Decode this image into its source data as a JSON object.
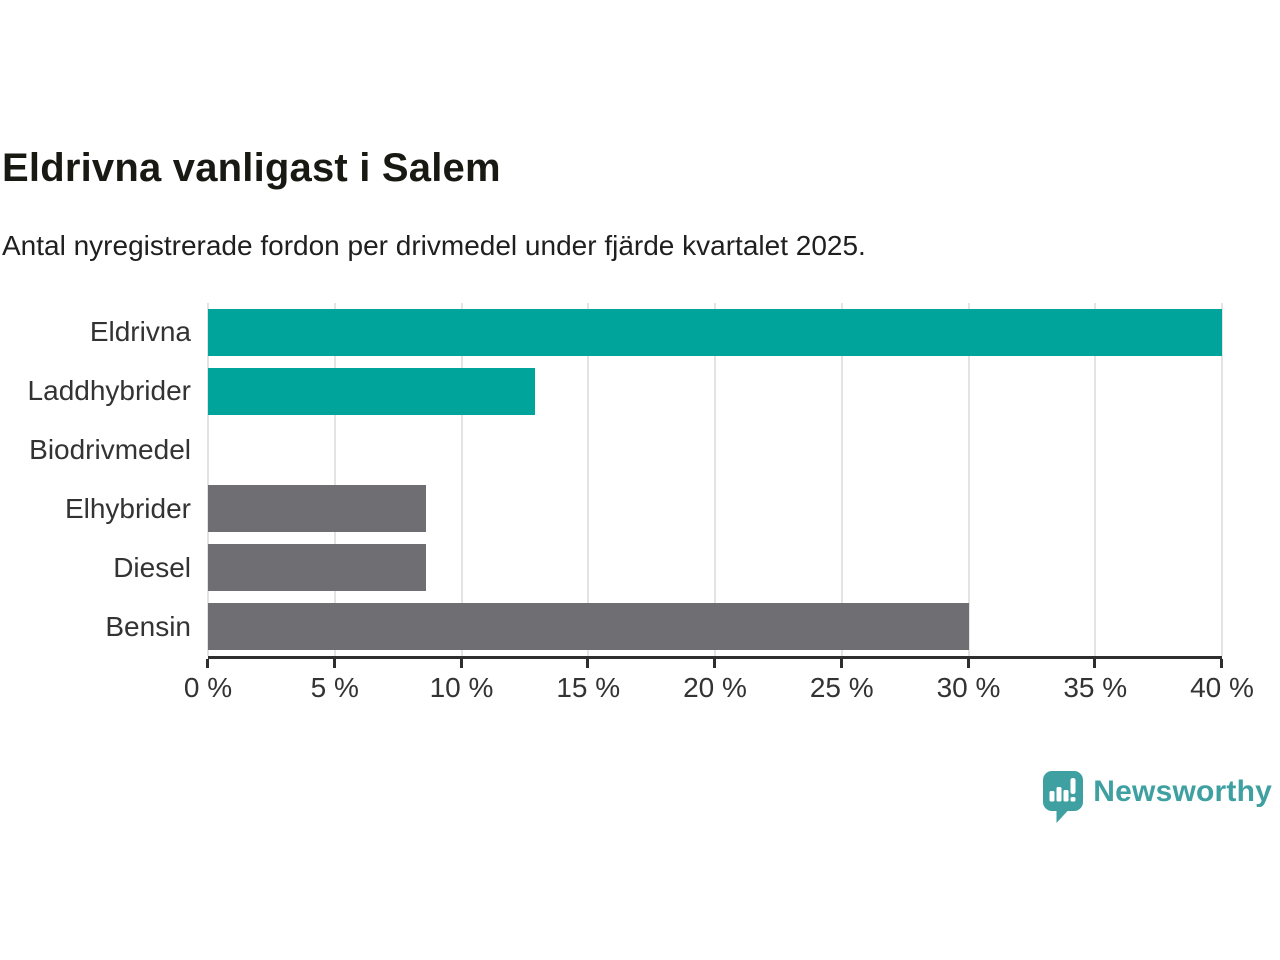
{
  "page": {
    "background_color": "#ffffff"
  },
  "chart_data": {
    "type": "bar",
    "orientation": "horizontal",
    "title": "Eldrivna vanligast i Salem",
    "subtitle": "Antal nyregistrerade fordon per drivmedel under fjärde kvartalet 2025.",
    "categories": [
      "Eldrivna",
      "Laddhybrider",
      "Biodrivmedel",
      "Elhybrider",
      "Diesel",
      "Bensin"
    ],
    "values": [
      40,
      12.9,
      0,
      8.6,
      8.6,
      30
    ],
    "unit": "%",
    "bar_colors": [
      "#00a49a",
      "#00a49a",
      "#6e6e73",
      "#6e6e73",
      "#6e6e73",
      "#6e6e73"
    ],
    "highlight_color": "#00a49a",
    "default_color": "#6e6e73",
    "xlim": [
      0,
      40
    ],
    "x_ticks": [
      0,
      5,
      10,
      15,
      20,
      25,
      30,
      35,
      40
    ],
    "x_tick_labels": [
      "0 %",
      "5 %",
      "10 %",
      "15 %",
      "20 %",
      "25 %",
      "30 %",
      "35 %",
      "40 %"
    ],
    "grid": true,
    "gridline_color": "#e3e3e3",
    "axis_color": "#2e2e2e",
    "label_color": "#333333",
    "legend": "none"
  },
  "logo": {
    "text": "Newsworthy",
    "color": "#3fa0a2",
    "icon": "bar-chart-speech-bubble"
  }
}
